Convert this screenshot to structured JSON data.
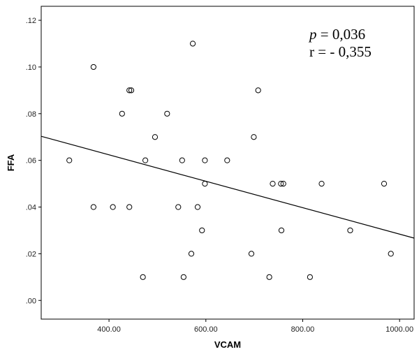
{
  "chart_data": {
    "type": "scatter",
    "xlabel": "VCAM",
    "ylabel": "FFA",
    "xlim": [
      260,
      1030
    ],
    "ylim": [
      -0.008,
      0.126
    ],
    "x_ticks": [
      400,
      600,
      800,
      1000
    ],
    "x_tick_labels": [
      "400.00",
      "600.00",
      "800.00",
      "1000.00"
    ],
    "y_ticks": [
      0,
      0.02,
      0.04,
      0.06,
      0.08,
      0.1,
      0.12
    ],
    "y_tick_labels": [
      ".00",
      ".02",
      ".04",
      ".06",
      ".08",
      ".10",
      ".12"
    ],
    "grid": false,
    "points": [
      {
        "x": 318,
        "y": 0.06
      },
      {
        "x": 368,
        "y": 0.1
      },
      {
        "x": 368,
        "y": 0.04
      },
      {
        "x": 408,
        "y": 0.04
      },
      {
        "x": 427,
        "y": 0.08
      },
      {
        "x": 442,
        "y": 0.09
      },
      {
        "x": 446,
        "y": 0.09
      },
      {
        "x": 442,
        "y": 0.04
      },
      {
        "x": 470,
        "y": 0.01
      },
      {
        "x": 475,
        "y": 0.06
      },
      {
        "x": 495,
        "y": 0.07
      },
      {
        "x": 520,
        "y": 0.08
      },
      {
        "x": 543,
        "y": 0.04
      },
      {
        "x": 551,
        "y": 0.06
      },
      {
        "x": 554,
        "y": 0.01
      },
      {
        "x": 570,
        "y": 0.02
      },
      {
        "x": 573,
        "y": 0.11
      },
      {
        "x": 583,
        "y": 0.04
      },
      {
        "x": 592,
        "y": 0.03
      },
      {
        "x": 598,
        "y": 0.05
      },
      {
        "x": 598,
        "y": 0.06
      },
      {
        "x": 644,
        "y": 0.06
      },
      {
        "x": 694,
        "y": 0.02
      },
      {
        "x": 699,
        "y": 0.07
      },
      {
        "x": 708,
        "y": 0.09
      },
      {
        "x": 731,
        "y": 0.01
      },
      {
        "x": 738,
        "y": 0.05
      },
      {
        "x": 755,
        "y": 0.05
      },
      {
        "x": 760,
        "y": 0.05
      },
      {
        "x": 756,
        "y": 0.03
      },
      {
        "x": 815,
        "y": 0.01
      },
      {
        "x": 839,
        "y": 0.05
      },
      {
        "x": 898,
        "y": 0.03
      },
      {
        "x": 968,
        "y": 0.05
      },
      {
        "x": 982,
        "y": 0.02
      }
    ],
    "fit_line": {
      "x": [
        260,
        1030
      ],
      "y": [
        0.0703,
        0.0267
      ]
    },
    "annotations": {
      "p_symbol": "p",
      "p_text": " = 0,036",
      "r_text": "r = - 0,355"
    }
  }
}
